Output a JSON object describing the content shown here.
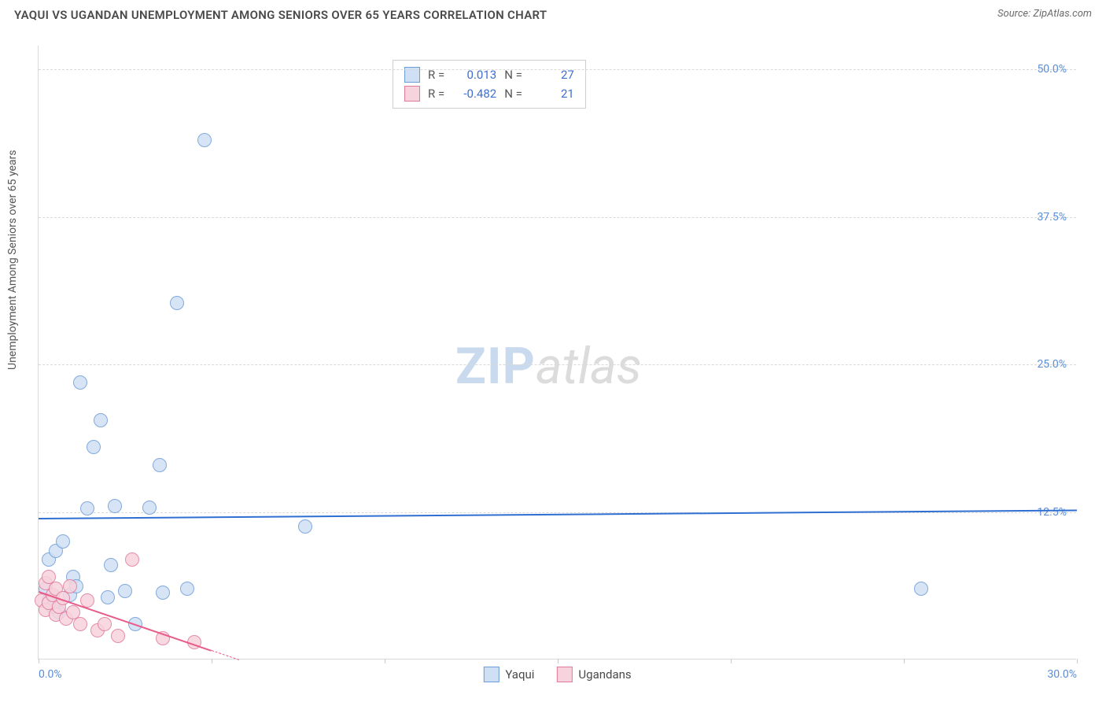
{
  "title": "YAQUI VS UGANDAN UNEMPLOYMENT AMONG SENIORS OVER 65 YEARS CORRELATION CHART",
  "source": "Source: ZipAtlas.com",
  "ylabel": "Unemployment Among Seniors over 65 years",
  "watermark": {
    "zip": "ZIP",
    "atlas": "atlas"
  },
  "chart": {
    "type": "scatter",
    "background_color": "#ffffff",
    "grid_color": "#d9d9d9",
    "grid_dash": "4,4",
    "axis_color": "#d9d9d9",
    "x_axis": {
      "min": 0.0,
      "max": 30.0,
      "tick_step": 5.0,
      "label_min": "0.0%",
      "label_max": "30.0%",
      "label_color": "#5b8dd6",
      "label_fontsize": 14
    },
    "y_axis": {
      "min": 0.0,
      "max": 52.0,
      "grid_values": [
        12.5,
        25.0,
        37.5,
        50.0
      ],
      "labels": [
        "12.5%",
        "25.0%",
        "37.5%",
        "50.0%"
      ],
      "label_color": "#5b8dd6",
      "label_fontsize": 14
    },
    "series": [
      {
        "name": "Yaqui",
        "color_fill": "#cfe0f5",
        "color_stroke": "#6d9cd6",
        "marker_radius": 9,
        "marker_opacity": 0.85,
        "points": [
          [
            0.2,
            6.0
          ],
          [
            0.3,
            5.0
          ],
          [
            0.3,
            8.5
          ],
          [
            0.5,
            9.2
          ],
          [
            0.6,
            4.0
          ],
          [
            0.7,
            10.0
          ],
          [
            0.9,
            5.5
          ],
          [
            1.0,
            7.0
          ],
          [
            1.2,
            23.5
          ],
          [
            1.4,
            12.8
          ],
          [
            1.6,
            18.0
          ],
          [
            1.8,
            20.3
          ],
          [
            2.0,
            5.3
          ],
          [
            2.1,
            8.0
          ],
          [
            2.2,
            13.0
          ],
          [
            2.5,
            5.8
          ],
          [
            2.8,
            3.0
          ],
          [
            3.2,
            12.9
          ],
          [
            3.5,
            16.5
          ],
          [
            3.6,
            5.7
          ],
          [
            4.0,
            30.2
          ],
          [
            4.3,
            6.0
          ],
          [
            4.8,
            44.0
          ],
          [
            7.7,
            11.3
          ],
          [
            25.5,
            6.0
          ],
          [
            0.4,
            4.5
          ],
          [
            1.1,
            6.2
          ]
        ],
        "trend": {
          "y_at_xmin": 12.0,
          "y_at_xmax": 12.7,
          "color": "#2f6fd1",
          "width": 2.5,
          "dash": "none"
        }
      },
      {
        "name": "Ugandans",
        "color_fill": "#f7d3de",
        "color_stroke": "#e07a9a",
        "marker_radius": 9,
        "marker_opacity": 0.85,
        "points": [
          [
            0.1,
            5.0
          ],
          [
            0.2,
            6.5
          ],
          [
            0.2,
            4.2
          ],
          [
            0.3,
            4.8
          ],
          [
            0.3,
            7.0
          ],
          [
            0.4,
            5.5
          ],
          [
            0.5,
            3.8
          ],
          [
            0.5,
            6.0
          ],
          [
            0.6,
            4.5
          ],
          [
            0.7,
            5.2
          ],
          [
            0.8,
            3.5
          ],
          [
            0.9,
            6.2
          ],
          [
            1.0,
            4.0
          ],
          [
            1.2,
            3.0
          ],
          [
            1.4,
            5.0
          ],
          [
            1.7,
            2.5
          ],
          [
            1.9,
            3.0
          ],
          [
            2.3,
            2.0
          ],
          [
            2.7,
            8.5
          ],
          [
            3.6,
            1.8
          ],
          [
            4.5,
            1.5
          ]
        ],
        "trend": {
          "y_at_xmin": 5.8,
          "y_at_x5": 0.8,
          "color": "#e85c8a",
          "width": 2,
          "dash_after_x": 5.0
        }
      }
    ],
    "stats_box": {
      "border_color": "#cfcfcf",
      "rows": [
        {
          "swatch_fill": "#cfe0f5",
          "swatch_stroke": "#6d9cd6",
          "r_label": "R =",
          "r_val": "0.013",
          "n_label": "N =",
          "n_val": "27"
        },
        {
          "swatch_fill": "#f7d3de",
          "swatch_stroke": "#e07a9a",
          "r_label": "R =",
          "r_val": "-0.482",
          "n_label": "N =",
          "n_val": "21"
        }
      ]
    },
    "legend_bottom": [
      {
        "swatch_fill": "#cfe0f5",
        "swatch_stroke": "#6d9cd6",
        "label": "Yaqui"
      },
      {
        "swatch_fill": "#f7d3de",
        "swatch_stroke": "#e07a9a",
        "label": "Ugandans"
      }
    ]
  }
}
